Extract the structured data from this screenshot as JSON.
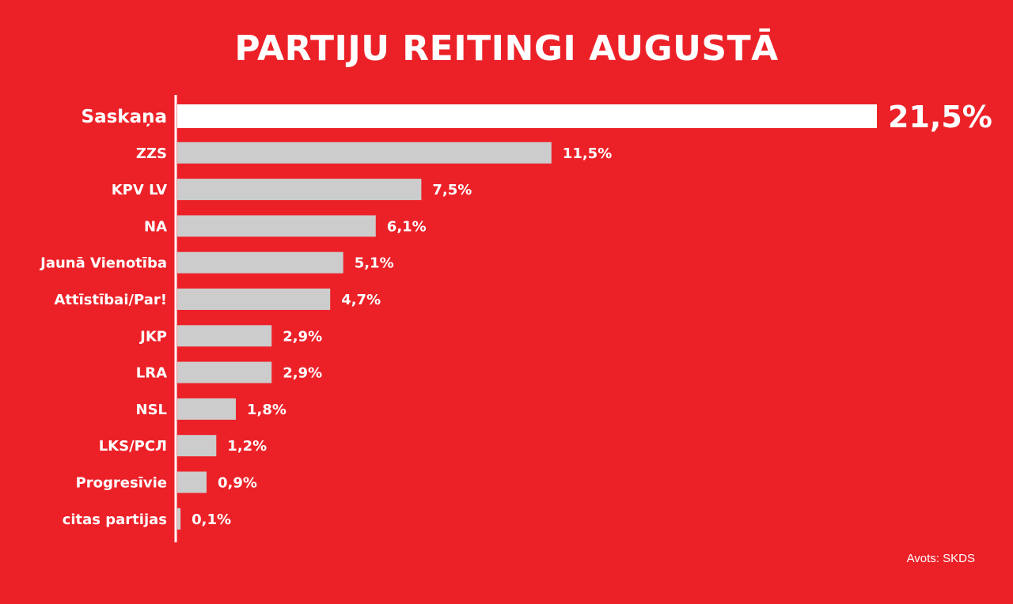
{
  "header": {
    "title": "PARTIJU REITINGI AUGUSTĀ"
  },
  "footer": {
    "source": "Avots: SKDS"
  },
  "colors": {
    "background": "#ec2128",
    "highlight_bar": "#ffffff",
    "bar": "#cccccc",
    "text": "#ffffff"
  },
  "chart_data": {
    "type": "bar",
    "orientation": "horizontal",
    "title": "PARTIJU REITINGI AUGUSTĀ",
    "xlabel": "",
    "ylabel": "",
    "grid": false,
    "legend": "none",
    "xlim": [
      0,
      21.5
    ],
    "highlight_index": 0,
    "categories": [
      "Saskaņa",
      "ZZS",
      "KPV LV",
      "NA",
      "Jaunā Vienotība",
      "Attīstībai/Par!",
      "JKP",
      "LRA",
      "NSL",
      "LKS/РСЛ",
      "Progresīvie",
      "citas partijas"
    ],
    "values": [
      21.5,
      11.5,
      7.5,
      6.1,
      5.1,
      4.7,
      2.9,
      2.9,
      1.8,
      1.2,
      0.9,
      0.1
    ],
    "value_labels": [
      "21,5%",
      "11,5%",
      "7,5%",
      "6,1%",
      "5,1%",
      "4,7%",
      "2,9%",
      "2,9%",
      "1,8%",
      "1,2%",
      "0,9%",
      "0,1%"
    ]
  }
}
